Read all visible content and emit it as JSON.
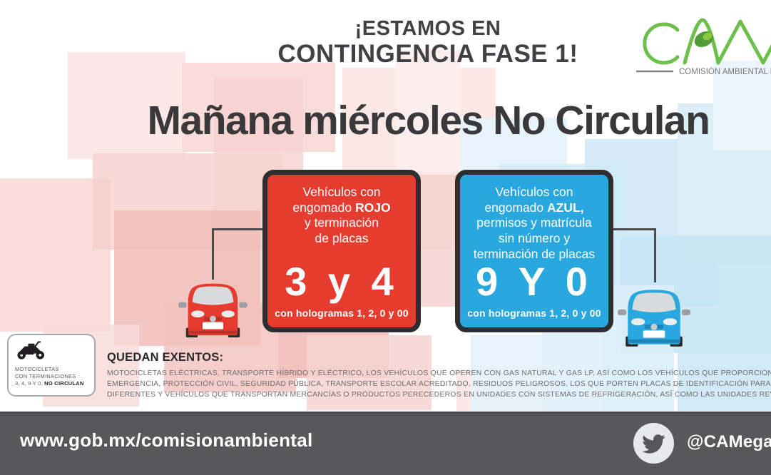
{
  "header": {
    "line1": "¡ESTAMOS EN",
    "line2": "CONTINGENCIA FASE 1!"
  },
  "logo": {
    "caption": "COMISIÓN AMBIENTAL DE LA",
    "green": "#6cbf4a"
  },
  "title": "Mañana miércoles No Circulan",
  "red_card": {
    "color": "#e63c30",
    "desc_lines": [
      {
        "t": "Vehículos con"
      },
      {
        "t": "engomado ",
        "b": "ROJO"
      },
      {
        "t": "y terminación"
      },
      {
        "t": "de placas"
      }
    ],
    "numbers": "3 y 4",
    "holograms": "con hologramas 1, 2, 0 y 00"
  },
  "blue_card": {
    "color": "#29a7df",
    "desc_lines": [
      {
        "t": "Vehículos con"
      },
      {
        "t": "engomado ",
        "b": "AZUL,"
      },
      {
        "t": "permisos y matrícula"
      },
      {
        "t": "sin número y"
      },
      {
        "t": "terminación de placas"
      }
    ],
    "numbers": "9 Y 0",
    "holograms": "con hologramas 1, 2, 0 y 00"
  },
  "moto_box": {
    "line1": "MOTOCICLETAS",
    "line2": "CON TERMINACIONES",
    "line3_regular": "3, 4, 9 Y 0, ",
    "line3_bold": "NO CIRCULAN"
  },
  "exempt": {
    "heading": "QUEDAN EXENTOS:",
    "lines": [
      "MOTOCICLETAS ELÉCTRICAS, TRANSPORTE HÍBRIDO Y ELÉCTRICO, LOS VEHÍCULOS QUE OPEREN CON GAS NATURAL Y GAS LP, ASÍ COMO LOS VEHÍCULOS QUE PROPORCIONAN SERVICIOS URBANOS DE",
      "EMERGENCIA, PROTECCIÓN CIVIL, SEGURIDAD PÚBLICA, TRANSPORTE ESCOLAR ACREDITADO, RESIDUOS PELIGROSOS, LOS QUE PORTEN PLACAS DE IDENTIFICACIÓN PARA TRANSPORTAR A PERSONAS CON",
      "DIFERENTES Y VEHÍCULOS QUE TRANSPORTAN MERCANCÍAS O PRODUCTOS PERECEDEROS EN UNIDADES CON SISTEMAS DE REFRIGERACIÓN, ASÍ COMO LAS UNIDADES REVOLVEDORAS DE CONCRETO",
      ""
    ]
  },
  "footer": {
    "bar_color": "#58585a",
    "url": "www.gob.mx/comisionambiental",
    "twitter_handle": "@CAMegalopolis"
  }
}
